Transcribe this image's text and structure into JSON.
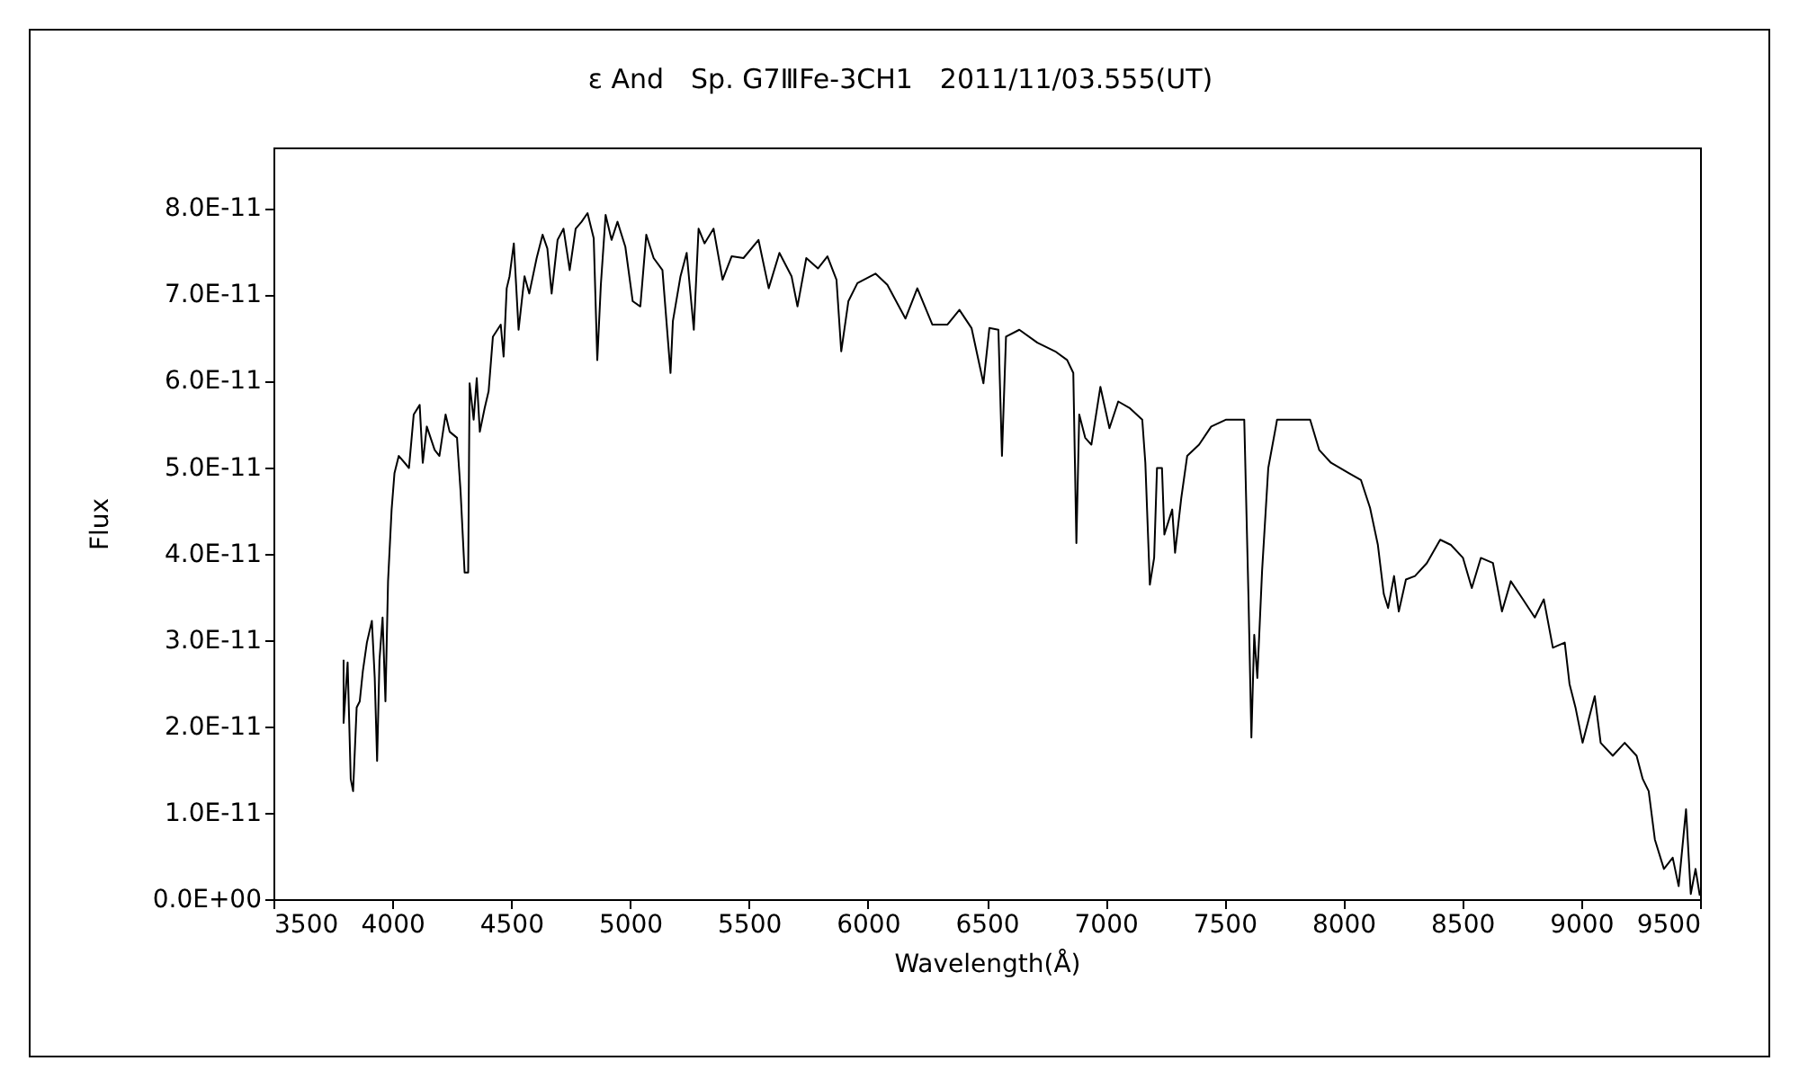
{
  "chart_data": {
    "type": "line",
    "title": "ε And　Sp. G7ⅢFe-3CH1　2011/11/03.555(UT)",
    "xlabel": "Wavelength(Å)",
    "ylabel": "Flux",
    "xlim": [
      3500,
      9500
    ],
    "xticks": [
      3500,
      4000,
      4500,
      5000,
      5500,
      6000,
      6500,
      7000,
      7500,
      8000,
      8500,
      9000,
      9500
    ],
    "ylim": [
      0,
      8.7e-11
    ],
    "yticks": [
      {
        "value": 0,
        "label": "0.0E+00"
      },
      {
        "value": 1e-11,
        "label": "1.0E-11"
      },
      {
        "value": 2e-11,
        "label": "2.0E-11"
      },
      {
        "value": 3e-11,
        "label": "3.0E-11"
      },
      {
        "value": 4e-11,
        "label": "4.0E-11"
      },
      {
        "value": 5e-11,
        "label": "5.0E-11"
      },
      {
        "value": 6e-11,
        "label": "6.0E-11"
      },
      {
        "value": 7e-11,
        "label": "7.0E-11"
      },
      {
        "value": 8e-11,
        "label": "8.0E-11"
      }
    ],
    "marker": "none",
    "line_style": "solid",
    "x": [
      3795,
      3795,
      3812,
      3825,
      3835,
      3850,
      3863,
      3876,
      3893,
      3914,
      3926,
      3936,
      3946,
      3959,
      3971,
      3982,
      3997,
      4009,
      4027,
      4052,
      4070,
      4090,
      4115,
      4128,
      4145,
      4178,
      4198,
      4224,
      4241,
      4272,
      4287,
      4304,
      4319,
      4325,
      4342,
      4355,
      4368,
      4388,
      4405,
      4423,
      4456,
      4468,
      4481,
      4493,
      4511,
      4531,
      4556,
      4576,
      4607,
      4632,
      4652,
      4670,
      4695,
      4720,
      4746,
      4771,
      4796,
      4821,
      4847,
      4862,
      4877,
      4897,
      4922,
      4947,
      4980,
      5011,
      5043,
      5068,
      5099,
      5136,
      5170,
      5180,
      5212,
      5238,
      5268,
      5288,
      5313,
      5351,
      5389,
      5427,
      5477,
      5540,
      5583,
      5628,
      5679,
      5704,
      5741,
      5790,
      5830,
      5868,
      5888,
      5918,
      5956,
      6032,
      6082,
      6158,
      6208,
      6271,
      6335,
      6385,
      6436,
      6486,
      6511,
      6549,
      6564,
      6581,
      6637,
      6713,
      6788,
      6838,
      6864,
      6877,
      6889,
      6914,
      6940,
      6978,
      7016,
      7053,
      7103,
      7154,
      7167,
      7186,
      7204,
      7216,
      7237,
      7247,
      7280,
      7292,
      7318,
      7343,
      7393,
      7444,
      7507,
      7583,
      7601,
      7613,
      7625,
      7638,
      7658,
      7684,
      7716,
      7721,
      7797,
      7860,
      7898,
      7948,
      8024,
      8074,
      8112,
      8145,
      8170,
      8188,
      8213,
      8233,
      8263,
      8301,
      8351,
      8407,
      8452,
      8503,
      8540,
      8578,
      8629,
      8667,
      8704,
      8755,
      8805,
      8843,
      8881,
      8931,
      8951,
      8976,
      9006,
      9057,
      9082,
      9133,
      9183,
      9233,
      9259,
      9284,
      9310,
      9348,
      9385,
      9410,
      9441,
      9461,
      9481,
      9499
    ],
    "series": [
      {
        "color": "#000000",
        "values": [
          2.77e-11,
          2.04e-11,
          2.74e-11,
          1.39e-11,
          1.25e-11,
          2.22e-11,
          2.29e-11,
          2.64e-11,
          2.97e-11,
          3.22e-11,
          2.56e-11,
          1.6e-11,
          2.77e-11,
          3.26e-11,
          2.29e-11,
          3.68e-11,
          4.51e-11,
          4.93e-11,
          5.13e-11,
          5.05e-11,
          4.99e-11,
          5.61e-11,
          5.72e-11,
          5.05e-11,
          5.47e-11,
          5.2e-11,
          5.13e-11,
          5.61e-11,
          5.41e-11,
          5.34e-11,
          4.72e-11,
          3.78e-11,
          3.78e-11,
          5.97e-11,
          5.55e-11,
          6.03e-11,
          5.41e-11,
          5.68e-11,
          5.88e-11,
          6.51e-11,
          6.65e-11,
          6.28e-11,
          7.07e-11,
          7.21e-11,
          7.59e-11,
          6.59e-11,
          7.21e-11,
          7.01e-11,
          7.42e-11,
          7.69e-11,
          7.53e-11,
          7.01e-11,
          7.63e-11,
          7.76e-11,
          7.28e-11,
          7.76e-11,
          7.84e-11,
          7.94e-11,
          7.65e-11,
          6.24e-11,
          7.11e-11,
          7.92e-11,
          7.63e-11,
          7.84e-11,
          7.55e-11,
          6.92e-11,
          6.86e-11,
          7.69e-11,
          7.42e-11,
          7.28e-11,
          6.09e-11,
          6.69e-11,
          7.21e-11,
          7.48e-11,
          6.59e-11,
          7.76e-11,
          7.59e-11,
          7.76e-11,
          7.17e-11,
          7.44e-11,
          7.42e-11,
          7.63e-11,
          7.07e-11,
          7.48e-11,
          7.21e-11,
          6.86e-11,
          7.42e-11,
          7.3e-11,
          7.44e-11,
          7.17e-11,
          6.34e-11,
          6.92e-11,
          7.13e-11,
          7.24e-11,
          7.11e-11,
          6.72e-11,
          7.07e-11,
          6.65e-11,
          6.65e-11,
          6.82e-11,
          6.61e-11,
          5.97e-11,
          6.61e-11,
          6.59e-11,
          5.13e-11,
          6.51e-11,
          6.59e-11,
          6.44e-11,
          6.34e-11,
          6.24e-11,
          6.09e-11,
          4.12e-11,
          5.61e-11,
          5.34e-11,
          5.26e-11,
          5.93e-11,
          5.45e-11,
          5.76e-11,
          5.68e-11,
          5.55e-11,
          5.05e-11,
          3.64e-11,
          3.95e-11,
          4.99e-11,
          4.99e-11,
          4.22e-11,
          4.51e-11,
          4.01e-11,
          4.64e-11,
          5.13e-11,
          5.26e-11,
          5.47e-11,
          5.55e-11,
          5.55e-11,
          3.47e-11,
          1.87e-11,
          3.06e-11,
          2.56e-11,
          3.8e-11,
          4.99e-11,
          5.47e-11,
          5.55e-11,
          5.55e-11,
          5.55e-11,
          5.2e-11,
          5.05e-11,
          4.93e-11,
          4.85e-11,
          4.53e-11,
          4.1e-11,
          3.53e-11,
          3.37e-11,
          3.74e-11,
          3.33e-11,
          3.7e-11,
          3.74e-11,
          3.89e-11,
          4.16e-11,
          4.1e-11,
          3.95e-11,
          3.6e-11,
          3.95e-11,
          3.89e-11,
          3.33e-11,
          3.68e-11,
          3.47e-11,
          3.26e-11,
          3.47e-11,
          2.91e-11,
          2.97e-11,
          2.49e-11,
          2.22e-11,
          1.81e-11,
          2.35e-11,
          1.81e-11,
          1.66e-11,
          1.81e-11,
          1.66e-11,
          1.39e-11,
          1.25e-11,
          6.9e-12,
          3.5e-12,
          4.8e-12,
          1.5e-12,
          1.04e-11,
          6e-13,
          3.5e-12,
          4e-13
        ]
      }
    ]
  }
}
